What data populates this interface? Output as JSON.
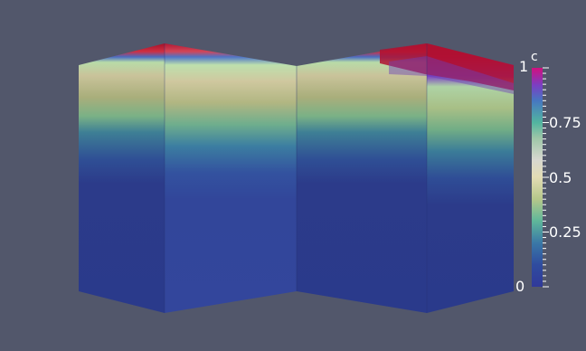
{
  "scalar_bar": {
    "title": "c",
    "range_max_label": "1",
    "range_min_label": "0",
    "tick_labels": [
      "0.75",
      "0.5",
      "0.25"
    ],
    "colormap_stops": [
      {
        "value": 0.0,
        "color": "#30399a"
      },
      {
        "value": 0.1,
        "color": "#2f4c9f"
      },
      {
        "value": 0.2,
        "color": "#3a78a7"
      },
      {
        "value": 0.3,
        "color": "#5fb79a"
      },
      {
        "value": 0.4,
        "color": "#b5c78a"
      },
      {
        "value": 0.5,
        "color": "#e3dcb4"
      },
      {
        "value": 0.58,
        "color": "#d7d7d0"
      },
      {
        "value": 0.68,
        "color": "#9dc6a7"
      },
      {
        "value": 0.75,
        "color": "#52b5a0"
      },
      {
        "value": 0.85,
        "color": "#4677c1"
      },
      {
        "value": 0.92,
        "color": "#7a3fc3"
      },
      {
        "value": 1.0,
        "color": "#d1107f"
      }
    ]
  },
  "volume": {
    "top_color": "#a4122a",
    "body_color": "#2d3a8a",
    "lit_face_color": "#34469c",
    "background": "#52576b"
  }
}
